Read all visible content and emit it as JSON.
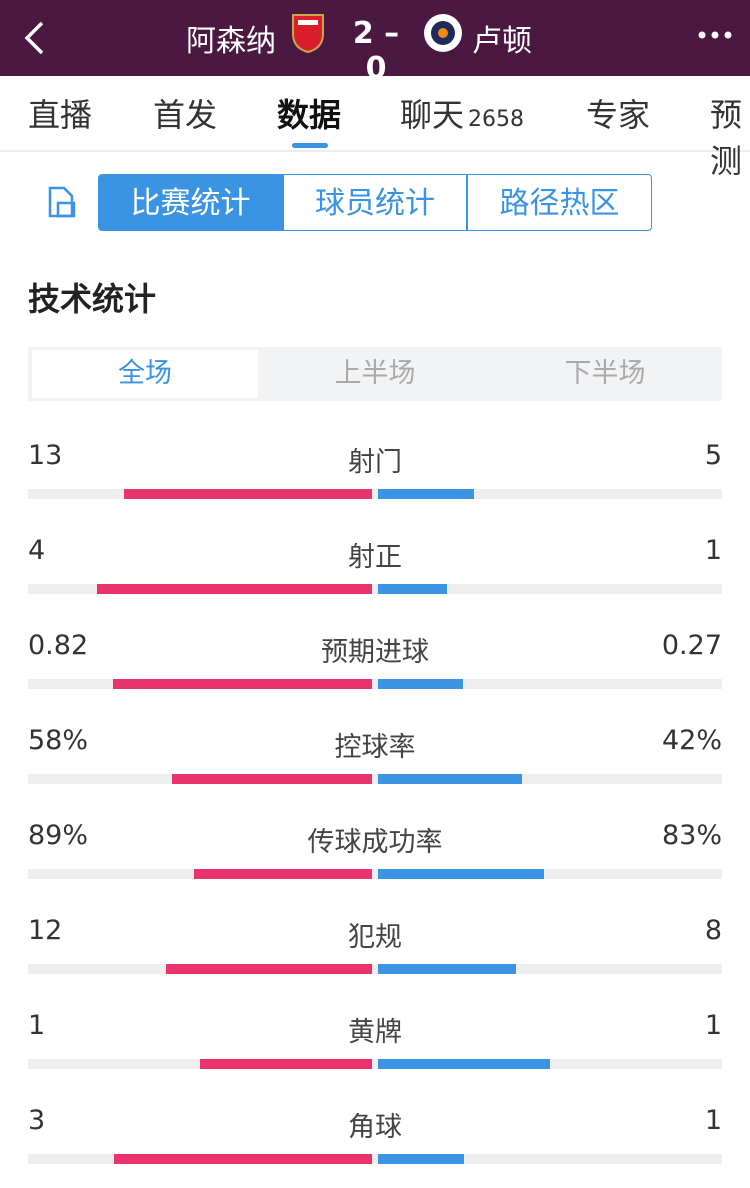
{
  "header": {
    "home": "阿森纳",
    "score": "2 – 0",
    "away": "卢顿"
  },
  "tabs": [
    {
      "label": "直播"
    },
    {
      "label": "首发"
    },
    {
      "label": "数据"
    },
    {
      "label": "聊天",
      "count": 2658
    },
    {
      "label": "专家"
    },
    {
      "label": "预测"
    }
  ],
  "segments": [
    "比赛统计",
    "球员统计",
    "路径热区"
  ],
  "section_title": "技术统计",
  "periods": [
    "全场",
    "上半场",
    "下半场"
  ],
  "stats": {
    "rows": [
      {
        "name": "射门",
        "values": [
          13,
          5
        ]
      },
      {
        "name": "射正",
        "values": [
          4,
          1
        ]
      },
      {
        "name": "预期进球",
        "values": [
          0.82,
          0.27
        ]
      },
      {
        "name": "控球率",
        "values": [
          58,
          42
        ],
        "value_labels": [
          "58%",
          "42%"
        ]
      },
      {
        "name": "传球成功率",
        "values": [
          89,
          83
        ],
        "value_labels": [
          "89%",
          "83%"
        ]
      },
      {
        "name": "犯规",
        "values": [
          12,
          8
        ]
      },
      {
        "name": "黄牌",
        "values": [
          1,
          1
        ]
      },
      {
        "name": "角球",
        "values": [
          3,
          1
        ]
      }
    ],
    "colors": [
      "#e8336d",
      "#3b93e3"
    ]
  }
}
